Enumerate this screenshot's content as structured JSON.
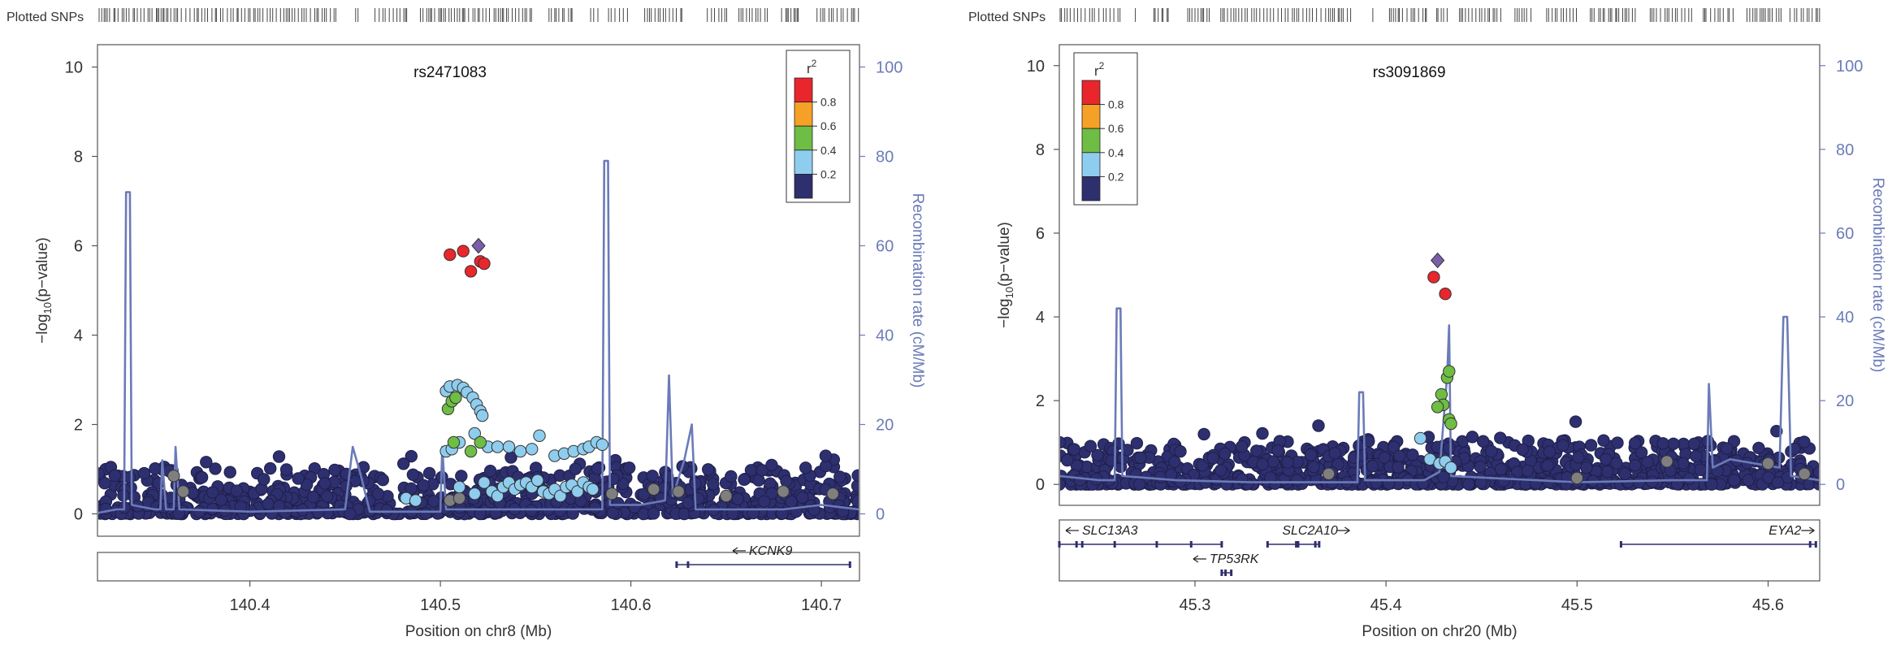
{
  "panels": [
    {
      "snp_strip_label": "Plotted SNPs",
      "lead_snp": "rs2471083",
      "ylabel_main": "−log",
      "ylabel_sub": "10",
      "ylabel_tail": "(p−value)",
      "y2label": "Recombination rate (cM/Mb)",
      "xlabel": "Position on chr8 (Mb)",
      "legend_title": "r",
      "legend_title_sup": "2",
      "legend_ticks": [
        "0.8",
        "0.6",
        "0.4",
        "0.2"
      ],
      "genes": [
        {
          "name": "KCNK9",
          "direction": "left",
          "start": 140.624,
          "end": 140.715,
          "row": 0,
          "exons": [
            140.624,
            140.63,
            140.715
          ]
        }
      ]
    },
    {
      "snp_strip_label": "Plotted SNPs",
      "lead_snp": "rs3091869",
      "ylabel_main": "−log",
      "ylabel_sub": "10",
      "ylabel_tail": "(p−value)",
      "y2label": "Recombination rate (cM/Mb)",
      "xlabel": "Position on chr20 (Mb)",
      "legend_title": "r",
      "legend_title_sup": "2",
      "legend_ticks": [
        "0.8",
        "0.6",
        "0.4",
        "0.2"
      ],
      "genes": [
        {
          "name": "SLC13A3",
          "direction": "left",
          "start": 45.229,
          "end": 45.314,
          "row": 0,
          "exons": [
            45.229,
            45.238,
            45.241,
            45.258,
            45.28,
            45.298,
            45.314
          ]
        },
        {
          "name": "SLC2A10",
          "direction": "right",
          "start": 45.338,
          "end": 45.365,
          "row": 0,
          "exons": [
            45.338,
            45.353,
            45.354,
            45.363,
            45.365
          ]
        },
        {
          "name": "TP53RK",
          "direction": "left",
          "start": 45.314,
          "end": 45.319,
          "row": 1,
          "exons": [
            45.314,
            45.316,
            45.319
          ]
        },
        {
          "name": "EYA2",
          "direction": "right",
          "start": 45.523,
          "end": 45.625,
          "row": 0,
          "exons": [
            45.523,
            45.622,
            45.625
          ]
        }
      ]
    }
  ],
  "legend_colors": [
    "#e8262c",
    "#f5a026",
    "#6ebd45",
    "#8fcdee",
    "#2e2f6e"
  ],
  "colors": {
    "recomb_line": "#6b7bb8",
    "right_axis": "#6b7bb8",
    "lead_marker": "#7b5ea7",
    "no_ld": "#7f7f7f",
    "axis": "#555555"
  },
  "chart_data": [
    {
      "type": "scatter",
      "title": "rs2471083",
      "xlabel": "Position on chr8 (Mb)",
      "ylabel": "−log10(p−value)",
      "y2label": "Recombination rate (cM/Mb)",
      "xlim": [
        140.32,
        140.72
      ],
      "ylim": [
        -0.5,
        10.5
      ],
      "y2lim": [
        -5,
        105
      ],
      "xticks": [
        140.4,
        140.5,
        140.6,
        140.7
      ],
      "yticks": [
        0,
        2,
        4,
        6,
        8,
        10
      ],
      "y2ticks": [
        0,
        20,
        40,
        60,
        80,
        100
      ],
      "legend_position": "top-right",
      "lead": {
        "x": 140.52,
        "y": 6.0
      },
      "series": [
        {
          "r2": "0.8-1.0",
          "color": "#e8262c",
          "points": [
            [
              140.505,
              5.8
            ],
            [
              140.512,
              5.88
            ],
            [
              140.516,
              5.43
            ],
            [
              140.521,
              5.65
            ],
            [
              140.523,
              5.6
            ]
          ]
        },
        {
          "r2": "0.4-0.6",
          "color": "#6ebd45",
          "points": [
            [
              140.504,
              2.35
            ],
            [
              140.506,
              2.52
            ],
            [
              140.508,
              2.6
            ],
            [
              140.507,
              1.6
            ],
            [
              140.516,
              1.4
            ],
            [
              140.521,
              1.6
            ]
          ]
        },
        {
          "r2": "0.2-0.4",
          "color": "#8fcdee",
          "points": [
            [
              140.503,
              2.75
            ],
            [
              140.505,
              2.85
            ],
            [
              140.509,
              2.88
            ],
            [
              140.512,
              2.82
            ],
            [
              140.514,
              2.72
            ],
            [
              140.517,
              2.6
            ],
            [
              140.519,
              2.45
            ],
            [
              140.521,
              2.3
            ],
            [
              140.522,
              2.2
            ],
            [
              140.503,
              1.4
            ],
            [
              140.506,
              1.45
            ],
            [
              140.51,
              1.6
            ],
            [
              140.518,
              1.8
            ],
            [
              140.525,
              1.5
            ],
            [
              140.53,
              1.5
            ],
            [
              140.536,
              1.5
            ],
            [
              140.542,
              1.4
            ],
            [
              140.548,
              1.45
            ],
            [
              140.552,
              1.75
            ],
            [
              140.56,
              1.3
            ],
            [
              140.565,
              1.35
            ],
            [
              140.57,
              1.4
            ],
            [
              140.575,
              1.45
            ],
            [
              140.578,
              1.5
            ],
            [
              140.582,
              1.6
            ],
            [
              140.585,
              1.55
            ],
            [
              140.482,
              0.35
            ],
            [
              140.487,
              0.3
            ],
            [
              140.51,
              0.6
            ],
            [
              140.518,
              0.45
            ],
            [
              140.523,
              0.7
            ],
            [
              140.527,
              0.5
            ],
            [
              140.53,
              0.4
            ],
            [
              140.533,
              0.6
            ],
            [
              140.536,
              0.7
            ],
            [
              140.539,
              0.55
            ],
            [
              140.542,
              0.65
            ],
            [
              140.545,
              0.7
            ],
            [
              140.548,
              0.6
            ],
            [
              140.551,
              0.75
            ],
            [
              140.554,
              0.5
            ],
            [
              140.557,
              0.45
            ],
            [
              140.56,
              0.55
            ],
            [
              140.563,
              0.4
            ],
            [
              140.566,
              0.6
            ],
            [
              140.569,
              0.65
            ],
            [
              140.572,
              0.5
            ],
            [
              140.575,
              0.7
            ],
            [
              140.578,
              0.6
            ],
            [
              140.58,
              0.55
            ]
          ]
        },
        {
          "r2": "no LD data",
          "color": "#7f7f7f",
          "points": [
            [
              140.36,
              0.85
            ],
            [
              140.365,
              0.5
            ],
            [
              140.505,
              0.3
            ],
            [
              140.51,
              0.35
            ],
            [
              140.59,
              0.45
            ],
            [
              140.612,
              0.55
            ],
            [
              140.625,
              0.5
            ],
            [
              140.65,
              0.4
            ],
            [
              140.68,
              0.5
            ],
            [
              140.706,
              0.45
            ]
          ]
        },
        {
          "r2": "0.0-0.2",
          "color": "#2e2f6e",
          "generated": "dense background SNPs",
          "count": 820,
          "max_y": 1.6
        }
      ],
      "recombination": [
        [
          140.32,
          0.2
        ],
        [
          140.33,
          1
        ],
        [
          140.334,
          1
        ],
        [
          140.335,
          72
        ],
        [
          140.337,
          72
        ],
        [
          140.338,
          2
        ],
        [
          140.35,
          1
        ],
        [
          140.353,
          1
        ],
        [
          140.354,
          12
        ],
        [
          140.356,
          1
        ],
        [
          140.36,
          1
        ],
        [
          140.361,
          15
        ],
        [
          140.363,
          1
        ],
        [
          140.4,
          0.5
        ],
        [
          140.45,
          1
        ],
        [
          140.454,
          15
        ],
        [
          140.458,
          9
        ],
        [
          140.463,
          0.5
        ],
        [
          140.5,
          0.5
        ],
        [
          140.501,
          15
        ],
        [
          140.503,
          1
        ],
        [
          140.55,
          1
        ],
        [
          140.585,
          1
        ],
        [
          140.586,
          79
        ],
        [
          140.588,
          79
        ],
        [
          140.589,
          2
        ],
        [
          140.605,
          2
        ],
        [
          140.618,
          3
        ],
        [
          140.62,
          31
        ],
        [
          140.622,
          4
        ],
        [
          140.628,
          12
        ],
        [
          140.632,
          20
        ],
        [
          140.634,
          1
        ],
        [
          140.68,
          1
        ],
        [
          140.7,
          2
        ],
        [
          140.72,
          1
        ]
      ]
    },
    {
      "type": "scatter",
      "title": "rs3091869",
      "xlabel": "Position on chr20 (Mb)",
      "ylabel": "−log10(p−value)",
      "y2label": "Recombination rate (cM/Mb)",
      "xlim": [
        45.229,
        45.627
      ],
      "ylim": [
        -0.5,
        10.5
      ],
      "y2lim": [
        -5,
        105
      ],
      "xticks": [
        45.3,
        45.4,
        45.5,
        45.6
      ],
      "yticks": [
        0,
        2,
        4,
        6,
        8,
        10
      ],
      "y2ticks": [
        0,
        20,
        40,
        60,
        80,
        100
      ],
      "legend_position": "top-left",
      "lead": {
        "x": 45.427,
        "y": 5.35
      },
      "series": [
        {
          "r2": "0.8-1.0",
          "color": "#e8262c",
          "points": [
            [
              45.425,
              4.95
            ],
            [
              45.431,
              4.55
            ]
          ]
        },
        {
          "r2": "0.4-0.6",
          "color": "#6ebd45",
          "points": [
            [
              45.432,
              2.55
            ],
            [
              45.433,
              2.7
            ],
            [
              45.429,
              2.15
            ],
            [
              45.43,
              1.9
            ],
            [
              45.427,
              1.85
            ],
            [
              45.433,
              1.55
            ],
            [
              45.434,
              1.45
            ]
          ]
        },
        {
          "r2": "0.2-0.4",
          "color": "#8fcdee",
          "points": [
            [
              45.418,
              1.1
            ],
            [
              45.423,
              0.6
            ],
            [
              45.428,
              0.5
            ],
            [
              45.431,
              0.55
            ],
            [
              45.434,
              0.4
            ]
          ]
        },
        {
          "r2": "no LD data",
          "color": "#7f7f7f",
          "points": [
            [
              45.37,
              0.25
            ],
            [
              45.5,
              0.15
            ],
            [
              45.547,
              0.55
            ],
            [
              45.6,
              0.5
            ],
            [
              45.619,
              0.25
            ]
          ]
        },
        {
          "r2": "0.0-0.2",
          "color": "#2e2f6e",
          "generated": "dense background SNPs",
          "count": 880,
          "max_y": 1.9
        }
      ],
      "recombination": [
        [
          45.229,
          2
        ],
        [
          45.25,
          1
        ],
        [
          45.258,
          1
        ],
        [
          45.259,
          42
        ],
        [
          45.261,
          42
        ],
        [
          45.262,
          2
        ],
        [
          45.29,
          1
        ],
        [
          45.33,
          0.5
        ],
        [
          45.385,
          0.5
        ],
        [
          45.386,
          22
        ],
        [
          45.388,
          22
        ],
        [
          45.389,
          1
        ],
        [
          45.42,
          1
        ],
        [
          45.428,
          3
        ],
        [
          45.432,
          26
        ],
        [
          45.433,
          38
        ],
        [
          45.434,
          2
        ],
        [
          45.5,
          0.5
        ],
        [
          45.55,
          1
        ],
        [
          45.568,
          1
        ],
        [
          45.569,
          24
        ],
        [
          45.571,
          4
        ],
        [
          45.58,
          6
        ],
        [
          45.606,
          4
        ],
        [
          45.608,
          40
        ],
        [
          45.61,
          40
        ],
        [
          45.612,
          2
        ],
        [
          45.627,
          1
        ]
      ]
    }
  ]
}
